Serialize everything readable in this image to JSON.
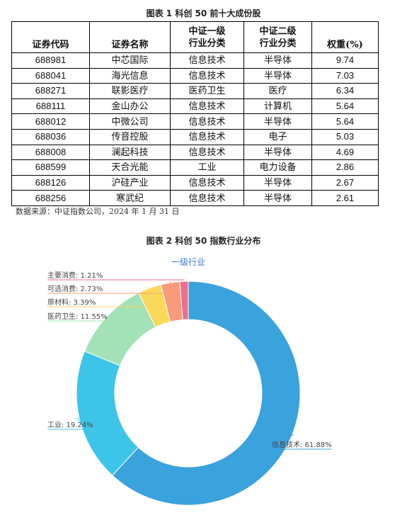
{
  "table_caption": "图表 1 科创 50 前十大成份股",
  "table_headers": [
    "证券代码",
    "证券名称",
    "中证一级行业分类",
    "中证二级行业分类",
    "权重(%)"
  ],
  "table_rows": [
    [
      "688981",
      "中芯国际",
      "信息技术",
      "半导体",
      "9.74"
    ],
    [
      "688041",
      "海光信息",
      "信息技术",
      "半导体",
      "7.03"
    ],
    [
      "688271",
      "联影医疗",
      "医药卫生",
      "医疗",
      "6.34"
    ],
    [
      "688111",
      "金山办公",
      "信息技术",
      "计算机",
      "5.64"
    ],
    [
      "688012",
      "中微公司",
      "信息技术",
      "半导体",
      "5.64"
    ],
    [
      "688036",
      "传音控股",
      "信息技术",
      "电子",
      "5.03"
    ],
    [
      "688008",
      "澜起科技",
      "信息技术",
      "半导体",
      "4.69"
    ],
    [
      "688599",
      "天合光能",
      "工业",
      "电力设备",
      "2.86"
    ],
    [
      "688126",
      "沪硅产业",
      "信息技术",
      "半导体",
      "2.67"
    ],
    [
      "688256",
      "寒武纪",
      "信息技术",
      "半导体",
      "2.61"
    ]
  ],
  "source_note": "数据来源：中证指数公司，2024 年 1 月 31 日",
  "chart_caption": "图表 2 科创 50 指数行业分布",
  "chart_data": {
    "type": "pie",
    "donut": true,
    "title": "一级行业",
    "title_color": "#3a7bd5",
    "slices": [
      {
        "label": "信息技术",
        "value": 61.88,
        "text": "信息技术: 61.88%",
        "color": "#3aa2dc"
      },
      {
        "label": "工业",
        "value": 19.24,
        "text": "工业: 19.24%",
        "color": "#3cc5e8"
      },
      {
        "label": "医药卫生",
        "value": 11.55,
        "text": "医药卫生: 11.55%",
        "color": "#a3e2b6"
      },
      {
        "label": "原材料",
        "value": 3.39,
        "text": "原材料: 3.39%",
        "color": "#fad85a"
      },
      {
        "label": "可选消费",
        "value": 2.73,
        "text": "可选消费: 2.73%",
        "color": "#f89a7c"
      },
      {
        "label": "主要消费",
        "value": 1.21,
        "text": "主要消费: 1.21%",
        "color": "#f06e8c"
      }
    ]
  }
}
